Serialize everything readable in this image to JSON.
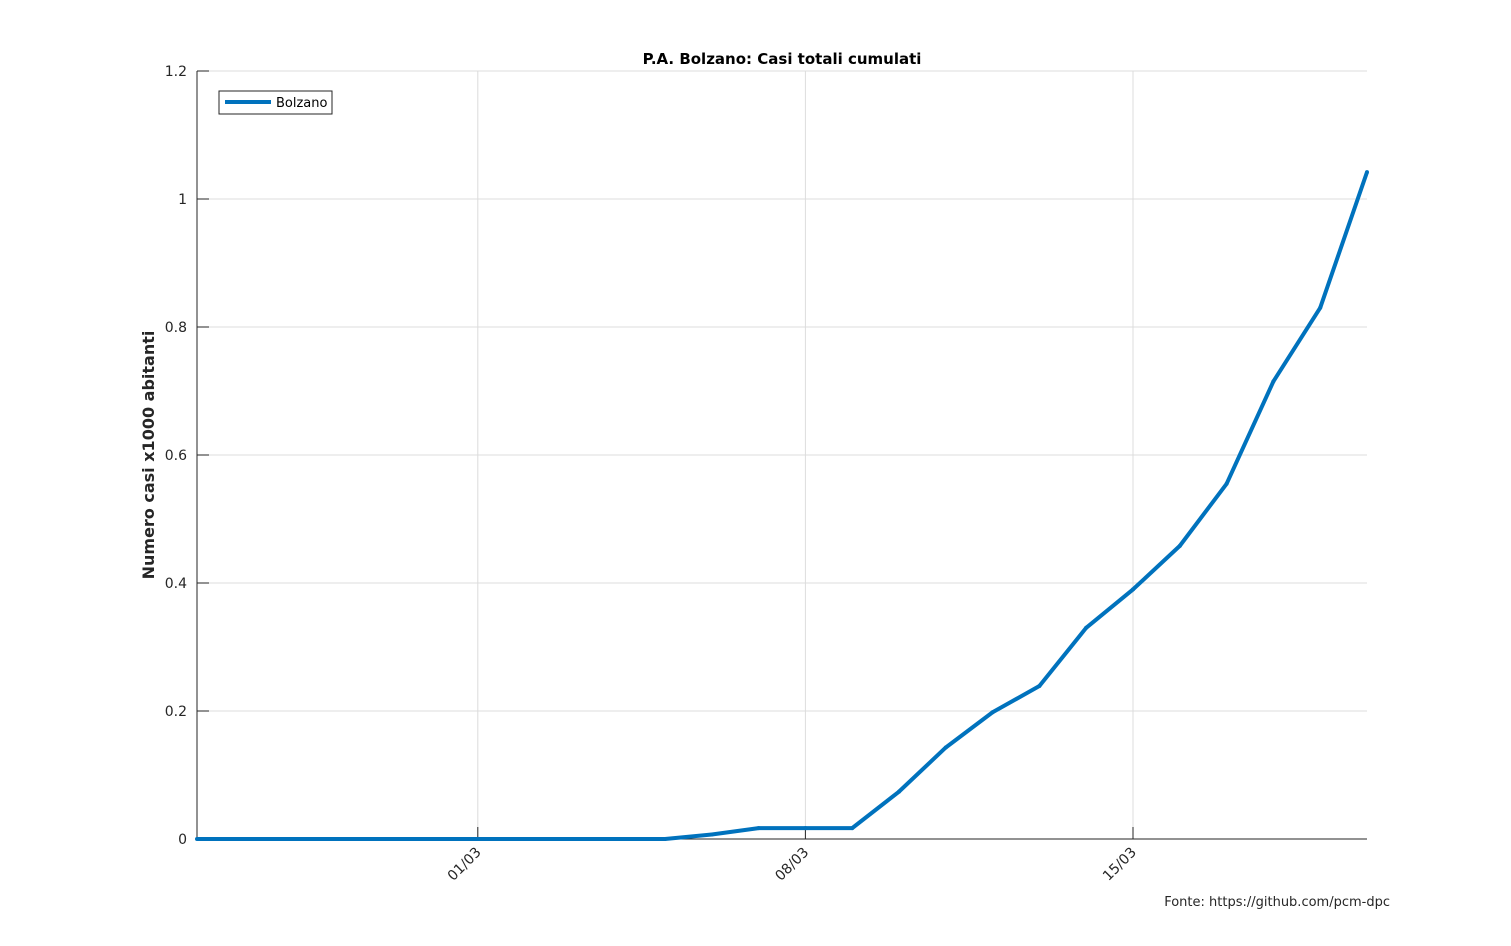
{
  "chart_data": {
    "type": "line",
    "title": "P.A. Bolzano: Casi totali cumulati",
    "xlabel": "",
    "ylabel": "Numero casi x1000 abitanti",
    "x": [
      "24/02",
      "25/02",
      "26/02",
      "27/02",
      "28/02",
      "29/02",
      "01/03",
      "02/03",
      "03/03",
      "04/03",
      "05/03",
      "06/03",
      "07/03",
      "08/03",
      "09/03",
      "10/03",
      "11/03",
      "12/03",
      "13/03",
      "14/03",
      "15/03",
      "16/03",
      "17/03",
      "18/03",
      "19/03",
      "20/03"
    ],
    "x_ticks": [
      {
        "date": "01/03",
        "label": "01/03"
      },
      {
        "date": "08/03",
        "label": "08/03"
      },
      {
        "date": "15/03",
        "label": "15/03"
      }
    ],
    "y_ticks": [
      0,
      0.2,
      0.4,
      0.6,
      0.8,
      1,
      1.2
    ],
    "y_tick_labels": [
      "0",
      "0.2",
      "0.4",
      "0.6",
      "0.8",
      "1",
      "1.2"
    ],
    "ylim": [
      0,
      1.2
    ],
    "grid": true,
    "legend_position": "top-left",
    "series": [
      {
        "name": "Bolzano",
        "color": "#0072BD",
        "values": [
          0,
          0,
          0,
          0,
          0,
          0,
          0,
          0,
          0,
          0,
          0,
          0.007,
          0.017,
          0.017,
          0.017,
          0.074,
          0.143,
          0.198,
          0.239,
          0.33,
          0.39,
          0.458,
          0.555,
          0.715,
          0.83,
          1.042
        ]
      }
    ]
  },
  "source_note": "Fonte: https://github.com/pcm-dpc"
}
